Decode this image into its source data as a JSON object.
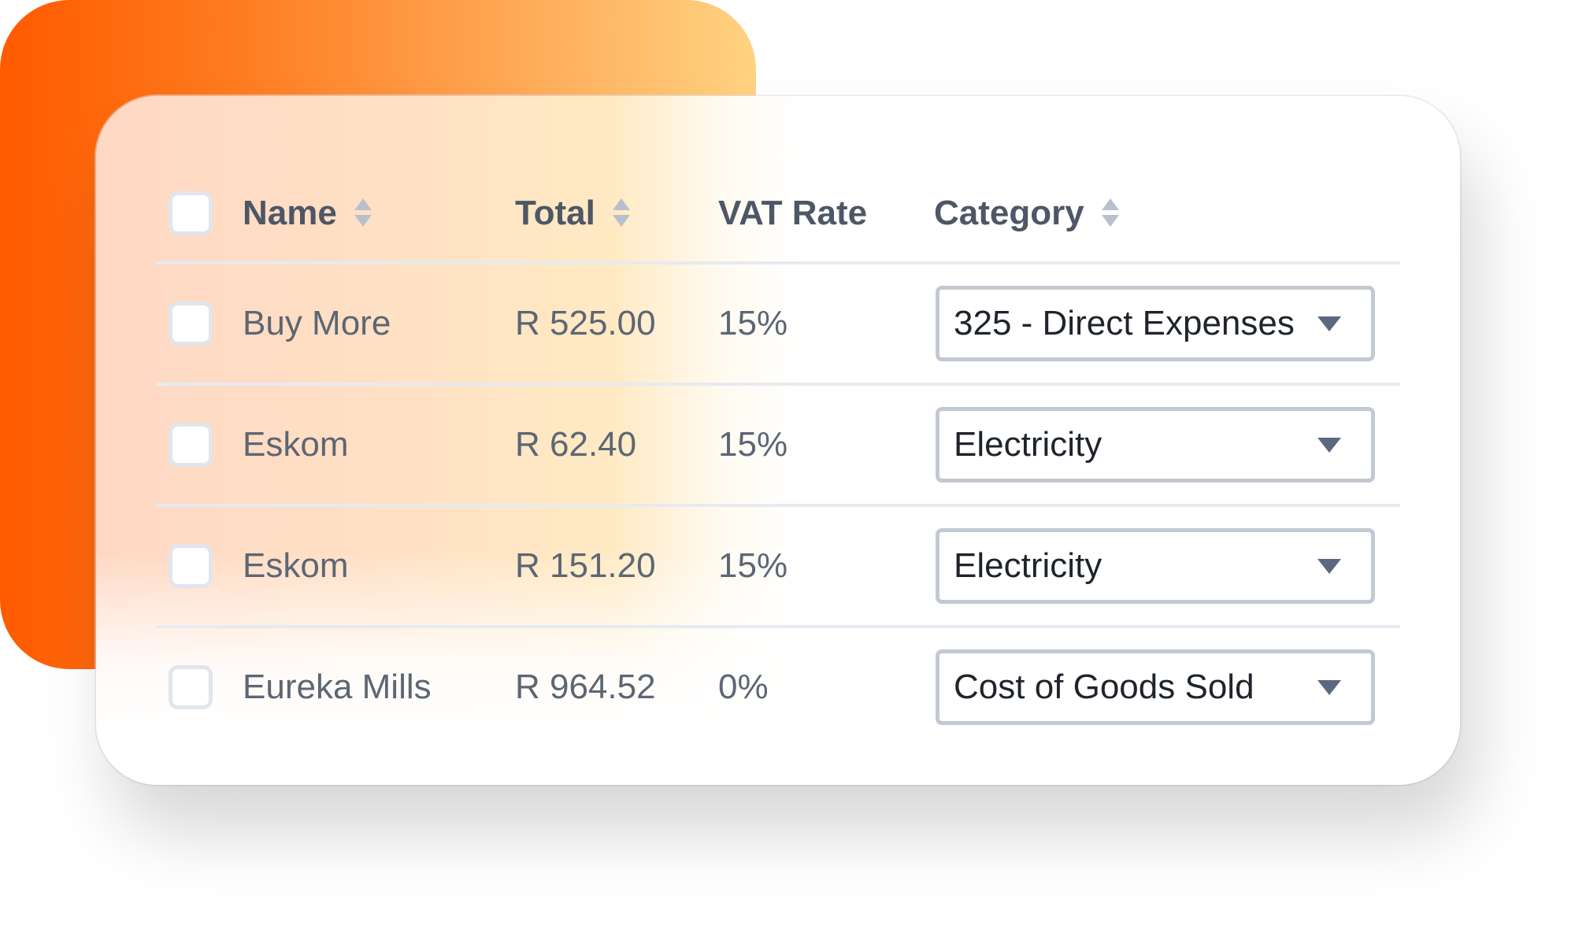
{
  "table": {
    "columns": [
      {
        "label": "Name",
        "sortable": true
      },
      {
        "label": "Total",
        "sortable": true
      },
      {
        "label": "VAT Rate",
        "sortable": false
      },
      {
        "label": "Category",
        "sortable": true
      }
    ],
    "rows": [
      {
        "name": "Buy More",
        "total": "R 525.00",
        "vat": "15%",
        "category": "325 - Direct Expenses"
      },
      {
        "name": "Eskom",
        "total": "R 62.40",
        "vat": "15%",
        "category": "Electricity"
      },
      {
        "name": "Eskom",
        "total": "R 151.20",
        "vat": "15%",
        "category": "Electricity"
      },
      {
        "name": "Eureka Mills",
        "total": "R 964.52",
        "vat": "0%",
        "category": "Cost of Goods Sold"
      }
    ]
  },
  "colors": {
    "accent_orange": "#ff5a00",
    "accent_yellow": "#ffd382",
    "text_header": "#4d5766",
    "text_body": "#5d6673",
    "select_border": "#c3c9d3"
  },
  "icons": {
    "sort": "sort-icon",
    "dropdown": "chevron-down-icon"
  }
}
